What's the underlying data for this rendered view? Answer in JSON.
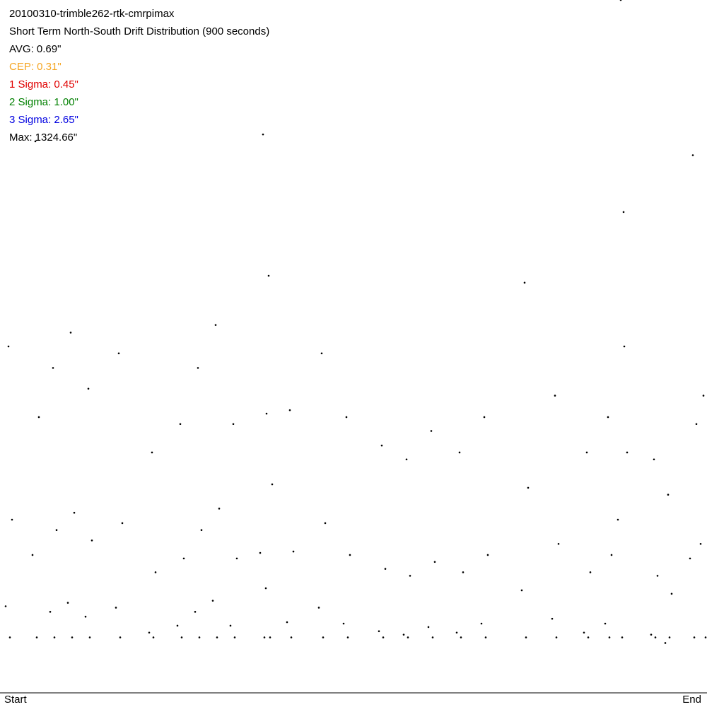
{
  "chart_data": {
    "type": "scatter",
    "title": "20100310-trimble262-rtk-cmrpimax",
    "subtitle": "Short Term North-South Drift Distribution (900 seconds)",
    "annotations": [
      {
        "text": "AVG: 0.69\"",
        "color": "#000000"
      },
      {
        "text": "CEP: 0.31\"",
        "color": "#f5a623"
      },
      {
        "text": "1 Sigma: 0.45\"",
        "color": "#e00000"
      },
      {
        "text": "2 Sigma: 1.00\"",
        "color": "#008000"
      },
      {
        "text": "3 Sigma: 2.65\"",
        "color": "#0000e0"
      },
      {
        "text": "Max: 1324.66\"",
        "color": "#000000"
      }
    ],
    "xlim": [
      0,
      1
    ],
    "xticks": [
      {
        "value": 0,
        "label": "Start"
      },
      {
        "value": 1,
        "label": "End"
      }
    ],
    "ylim": [
      0,
      100
    ],
    "color": "#000000",
    "x": [
      0.012,
      0.017,
      0.008,
      0.014,
      0.05,
      0.055,
      0.046,
      0.052,
      0.075,
      0.08,
      0.071,
      0.077,
      0.1,
      0.105,
      0.096,
      0.102,
      0.125,
      0.13,
      0.121,
      0.127,
      0.168,
      0.173,
      0.164,
      0.17,
      0.215,
      0.22,
      0.211,
      0.217,
      0.255,
      0.26,
      0.251,
      0.257,
      0.28,
      0.285,
      0.276,
      0.282,
      0.305,
      0.31,
      0.301,
      0.307,
      0.33,
      0.335,
      0.326,
      0.332,
      0.372,
      0.377,
      0.368,
      0.374,
      0.38,
      0.385,
      0.376,
      0.382,
      0.41,
      0.415,
      0.406,
      0.412,
      0.455,
      0.46,
      0.451,
      0.457,
      0.49,
      0.495,
      0.486,
      0.492,
      0.54,
      0.545,
      0.536,
      0.542,
      0.575,
      0.58,
      0.571,
      0.577,
      0.61,
      0.615,
      0.606,
      0.612,
      0.65,
      0.655,
      0.646,
      0.652,
      0.685,
      0.69,
      0.681,
      0.687,
      0.742,
      0.747,
      0.738,
      0.744,
      0.785,
      0.79,
      0.781,
      0.787,
      0.83,
      0.835,
      0.826,
      0.832,
      0.86,
      0.865,
      0.856,
      0.862,
      0.878,
      0.883,
      0.874,
      0.88,
      0.882,
      0.887,
      0.925,
      0.93,
      0.921,
      0.927,
      0.945,
      0.95,
      0.941,
      0.947,
      0.98,
      0.985,
      0.976,
      0.982,
      0.995,
      0.991,
      0.998
    ],
    "values": [
      50.0,
      25.0,
      12.5,
      8,
      79.6,
      39.8,
      19.9,
      8,
      46.9,
      23.5,
      11.7,
      8,
      52.0,
      26.0,
      13.0,
      8,
      43.9,
      22.0,
      11.0,
      8,
      49.0,
      24.5,
      12.3,
      8,
      34.7,
      17.4,
      8.7,
      8,
      38.8,
      19.4,
      9.7,
      8,
      46.9,
      23.5,
      11.7,
      8,
      53.1,
      26.6,
      13.3,
      8,
      38.8,
      19.4,
      9.7,
      8,
      80.6,
      40.3,
      20.2,
      8,
      60.2,
      30.1,
      15.1,
      8,
      40.8,
      20.4,
      10.2,
      8,
      49.0,
      24.5,
      12.3,
      8,
      39.8,
      19.9,
      10.0,
      8,
      35.7,
      17.9,
      8.9,
      8,
      33.7,
      16.9,
      8.4,
      8,
      37.8,
      18.9,
      9.5,
      8,
      34.7,
      17.4,
      8.7,
      8,
      39.8,
      19.9,
      10.0,
      8,
      59.2,
      29.6,
      14.8,
      8,
      42.9,
      21.5,
      10.7,
      8,
      34.7,
      17.4,
      8.7,
      8,
      39.8,
      19.9,
      10.0,
      8,
      100,
      50,
      25,
      8,
      69.4,
      34.7,
      33.7,
      16.9,
      8.4,
      8,
      28.6,
      14.3,
      7.2,
      8,
      77.6,
      38.8,
      19.4,
      8,
      42.9,
      21.5,
      8
    ]
  }
}
